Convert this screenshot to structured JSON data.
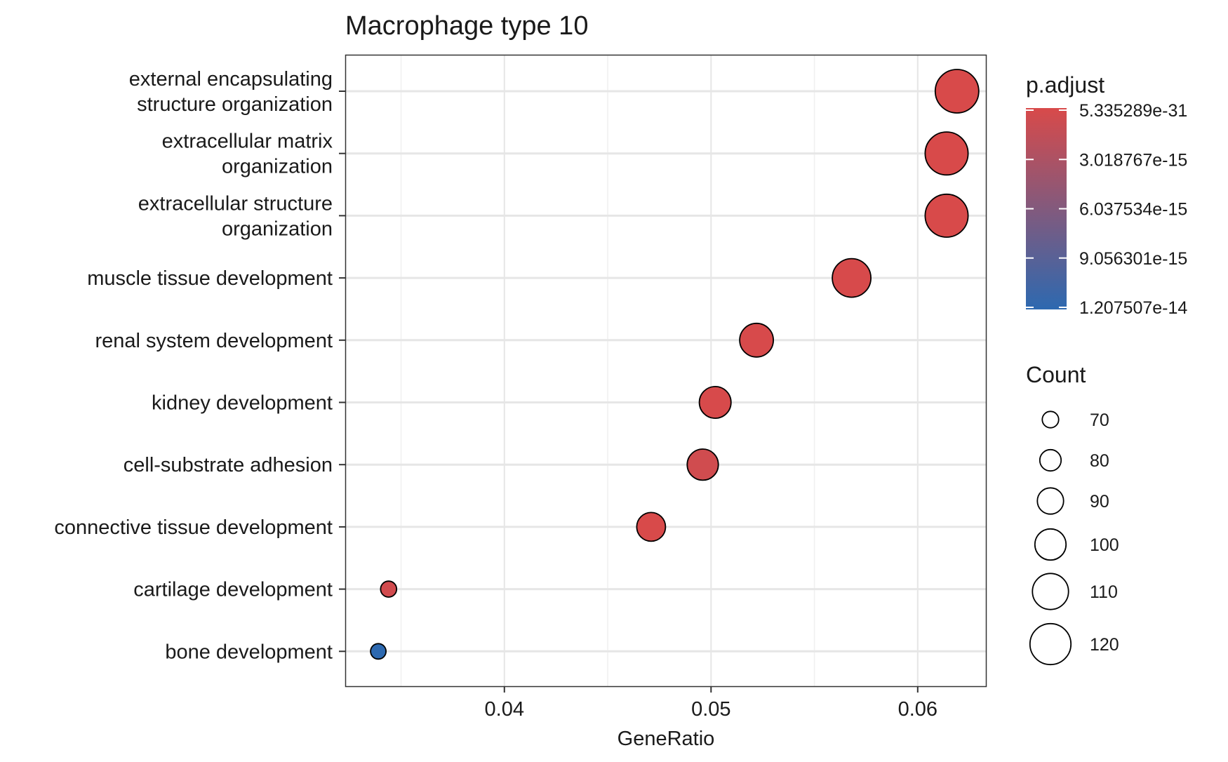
{
  "chart_data": {
    "type": "scatter",
    "title": "Macrophage type 10",
    "xlabel": "GeneRatio",
    "ylabel": "",
    "xlim": [
      0.0323,
      0.0633
    ],
    "x_ticks": [
      0.04,
      0.05,
      0.06
    ],
    "x_tick_labels": [
      "0.04",
      "0.05",
      "0.06"
    ],
    "grid": true,
    "categories": [
      [
        "external encapsulating",
        "structure organization"
      ],
      [
        "extracellular matrix",
        "organization"
      ],
      [
        "extracellular structure",
        "organization"
      ],
      [
        "muscle tissue development"
      ],
      [
        "renal system development"
      ],
      [
        "kidney development"
      ],
      [
        "cell-substrate adhesion"
      ],
      [
        "connective tissue development"
      ],
      [
        "cartilage development"
      ],
      [
        "bone development"
      ]
    ],
    "points": [
      {
        "gene_ratio": 0.0619,
        "count": 125,
        "p_adjust": 5.34e-31
      },
      {
        "gene_ratio": 0.0614,
        "count": 124,
        "p_adjust": 5.34e-31
      },
      {
        "gene_ratio": 0.0614,
        "count": 124,
        "p_adjust": 5.34e-31
      },
      {
        "gene_ratio": 0.0568,
        "count": 115,
        "p_adjust": 1e-16
      },
      {
        "gene_ratio": 0.0522,
        "count": 105,
        "p_adjust": 1e-16
      },
      {
        "gene_ratio": 0.0502,
        "count": 101,
        "p_adjust": 1e-16
      },
      {
        "gene_ratio": 0.0496,
        "count": 100,
        "p_adjust": 6e-16
      },
      {
        "gene_ratio": 0.0471,
        "count": 95,
        "p_adjust": 3e-17
      },
      {
        "gene_ratio": 0.0344,
        "count": 69,
        "p_adjust": 5e-16
      },
      {
        "gene_ratio": 0.0339,
        "count": 68,
        "p_adjust": 1.207507e-14
      }
    ],
    "color_legend": {
      "title": "p.adjust",
      "min": 5.335289e-31,
      "max": 1.207507e-14,
      "low_color": "#d84a4a",
      "high_color": "#2d69b0",
      "breaks": [
        5.335289e-31,
        3.018767e-15,
        6.037534e-15,
        9.056301e-15,
        1.207507e-14
      ],
      "labels": [
        "5.335289e-31",
        "3.018767e-15",
        "6.037534e-15",
        "9.056301e-15",
        "1.207507e-14"
      ]
    },
    "size_legend": {
      "title": "Count",
      "values": [
        70,
        80,
        90,
        100,
        110,
        120
      ],
      "labels": [
        "70",
        "80",
        "90",
        "100",
        "110",
        "120"
      ]
    },
    "legend_position": "right"
  }
}
